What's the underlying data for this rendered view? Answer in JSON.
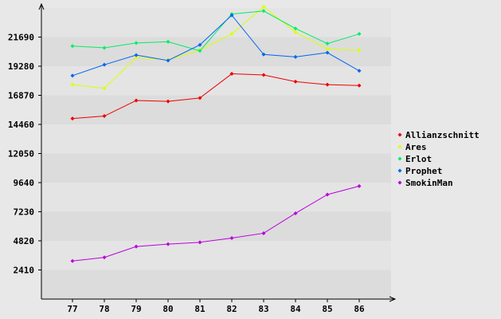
{
  "chart_data": {
    "type": "line",
    "title": "",
    "xlabel": "",
    "ylabel": "",
    "categories": [
      "77",
      "78",
      "79",
      "80",
      "81",
      "82",
      "83",
      "84",
      "85",
      "86"
    ],
    "ylim": [
      0,
      24100
    ],
    "yticks": [
      2410,
      4820,
      7230,
      9640,
      12050,
      14460,
      16870,
      19280,
      21690
    ],
    "grid": "horizontal bands",
    "legend_position": "right",
    "series": [
      {
        "name": "Allianzschnitt",
        "color": "#ee0000",
        "values": [
          14950,
          15150,
          16440,
          16370,
          16650,
          18650,
          18550,
          18000,
          17750,
          17680
        ]
      },
      {
        "name": "Ares",
        "color": "#ddff00",
        "values": [
          17750,
          17450,
          20000,
          19800,
          20600,
          21950,
          24200,
          22100,
          20700,
          20600
        ]
      },
      {
        "name": "Erlot",
        "color": "#00ee66",
        "values": [
          20950,
          20800,
          21200,
          21300,
          20550,
          23600,
          23850,
          22400,
          21150,
          21950
        ]
      },
      {
        "name": "Prophet",
        "color": "#0066ee",
        "values": [
          18500,
          19400,
          20200,
          19750,
          21050,
          23500,
          20250,
          20050,
          20400,
          18900
        ]
      },
      {
        "name": "SmokinMan",
        "color": "#bb00dd",
        "values": [
          3150,
          3450,
          4350,
          4550,
          4700,
          5050,
          5450,
          7100,
          8650,
          9350
        ]
      }
    ]
  }
}
